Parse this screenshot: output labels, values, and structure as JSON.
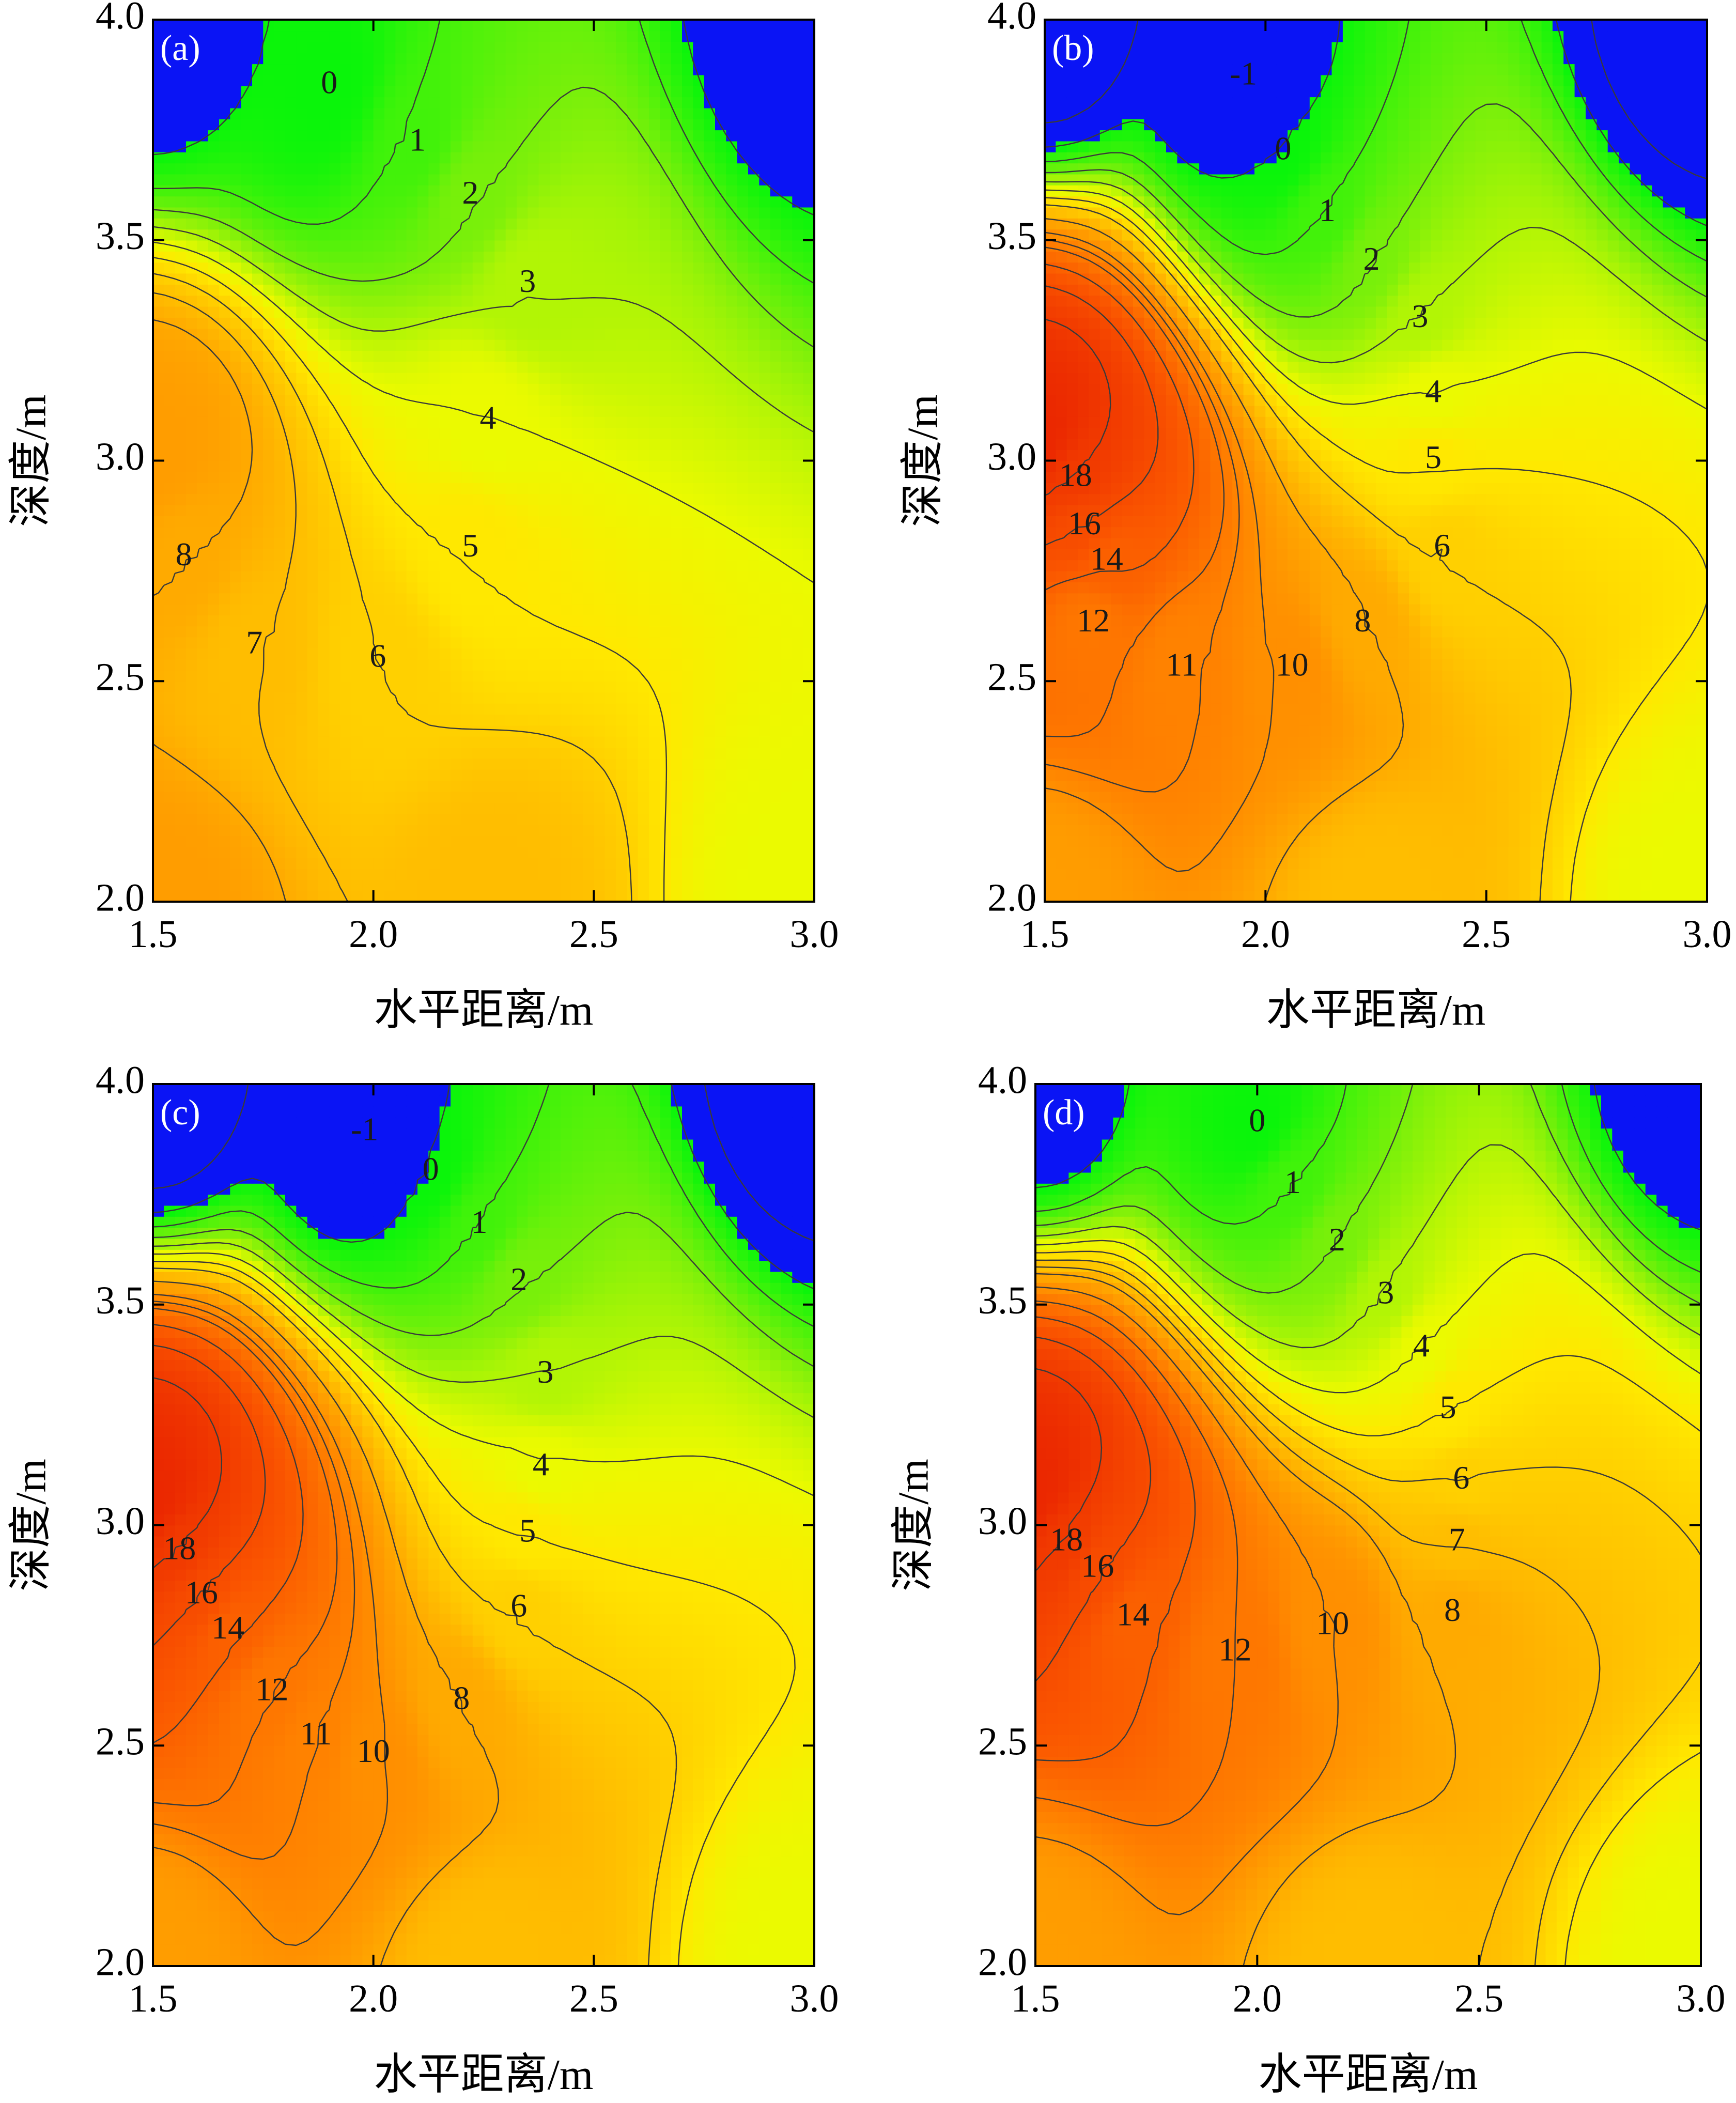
{
  "chart_data": [
    {
      "type": "contour",
      "panel_label": "(a)",
      "xlabel": "水平距离/m",
      "ylabel": "深度/m",
      "xlim": [
        1.5,
        3.0
      ],
      "ylim": [
        2.0,
        4.0
      ],
      "x_ticks": [
        "1.5",
        "2.0",
        "2.5",
        "3.0"
      ],
      "y_ticks": [
        "2.0",
        "2.5",
        "3.0",
        "3.5",
        "4.0"
      ],
      "peak": {
        "x": 1.5,
        "y": 3.0,
        "value": 9
      },
      "levels": [
        0,
        1,
        2,
        3,
        4,
        5,
        6,
        7,
        8
      ],
      "contour_labels": [
        {
          "text": "0",
          "x": 1.9,
          "y": 3.85
        },
        {
          "text": "1",
          "x": 2.1,
          "y": 3.72
        },
        {
          "text": "2",
          "x": 2.22,
          "y": 3.6
        },
        {
          "text": "3",
          "x": 2.35,
          "y": 3.4
        },
        {
          "text": "4",
          "x": 2.26,
          "y": 3.09
        },
        {
          "text": "5",
          "x": 2.22,
          "y": 2.8
        },
        {
          "text": "6",
          "x": 2.01,
          "y": 2.55
        },
        {
          "text": "7",
          "x": 1.73,
          "y": 2.58
        },
        {
          "text": "8",
          "x": 1.57,
          "y": 2.78
        }
      ]
    },
    {
      "type": "contour",
      "panel_label": "(b)",
      "xlabel": "水平距离/m",
      "ylabel": "深度/m",
      "xlim": [
        1.5,
        3.0
      ],
      "ylim": [
        2.0,
        4.0
      ],
      "x_ticks": [
        "1.5",
        "2.0",
        "2.5",
        "3.0"
      ],
      "y_ticks": [
        "2.0",
        "2.5",
        "3.0",
        "3.5",
        "4.0"
      ],
      "peak": {
        "x": 1.5,
        "y": 3.05,
        "value": 20
      },
      "levels": [
        -1,
        0,
        1,
        2,
        3,
        4,
        5,
        6,
        8,
        10,
        11,
        12,
        14,
        16,
        18
      ],
      "contour_labels": [
        {
          "text": "-1",
          "x": 1.95,
          "y": 3.87
        },
        {
          "text": "0",
          "x": 2.04,
          "y": 3.7
        },
        {
          "text": "1",
          "x": 2.14,
          "y": 3.56
        },
        {
          "text": "2",
          "x": 2.24,
          "y": 3.45
        },
        {
          "text": "3",
          "x": 2.35,
          "y": 3.32
        },
        {
          "text": "4",
          "x": 2.38,
          "y": 3.15
        },
        {
          "text": "5",
          "x": 2.38,
          "y": 3.0
        },
        {
          "text": "6",
          "x": 2.4,
          "y": 2.8
        },
        {
          "text": "8",
          "x": 2.22,
          "y": 2.63
        },
        {
          "text": "10",
          "x": 2.06,
          "y": 2.53
        },
        {
          "text": "11",
          "x": 1.81,
          "y": 2.53
        },
        {
          "text": "12",
          "x": 1.61,
          "y": 2.63
        },
        {
          "text": "14",
          "x": 1.64,
          "y": 2.77
        },
        {
          "text": "16",
          "x": 1.59,
          "y": 2.85
        },
        {
          "text": "18",
          "x": 1.57,
          "y": 2.96
        }
      ]
    },
    {
      "type": "contour",
      "panel_label": "(c)",
      "xlabel": "水平距离/m",
      "ylabel": "深度/m",
      "xlim": [
        1.5,
        3.0
      ],
      "ylim": [
        2.0,
        4.0
      ],
      "x_ticks": [
        "1.5",
        "2.0",
        "2.5",
        "3.0"
      ],
      "y_ticks": [
        "2.0",
        "2.5",
        "3.0",
        "3.5",
        "4.0"
      ],
      "peak": {
        "x": 1.5,
        "y": 3.05,
        "value": 20
      },
      "levels": [
        -1,
        0,
        1,
        2,
        3,
        4,
        5,
        6,
        8,
        10,
        11,
        12,
        14,
        16,
        18
      ],
      "contour_labels": [
        {
          "text": "-1",
          "x": 1.98,
          "y": 3.89
        },
        {
          "text": "0",
          "x": 2.13,
          "y": 3.8
        },
        {
          "text": "1",
          "x": 2.24,
          "y": 3.68
        },
        {
          "text": "2",
          "x": 2.33,
          "y": 3.55
        },
        {
          "text": "3",
          "x": 2.39,
          "y": 3.34
        },
        {
          "text": "4",
          "x": 2.38,
          "y": 3.13
        },
        {
          "text": "5",
          "x": 2.35,
          "y": 2.98
        },
        {
          "text": "6",
          "x": 2.33,
          "y": 2.81
        },
        {
          "text": "8",
          "x": 2.2,
          "y": 2.6
        },
        {
          "text": "10",
          "x": 2.0,
          "y": 2.48
        },
        {
          "text": "11",
          "x": 1.87,
          "y": 2.52
        },
        {
          "text": "12",
          "x": 1.77,
          "y": 2.62
        },
        {
          "text": "14",
          "x": 1.67,
          "y": 2.76
        },
        {
          "text": "16",
          "x": 1.61,
          "y": 2.84
        },
        {
          "text": "18",
          "x": 1.56,
          "y": 2.94
        }
      ]
    },
    {
      "type": "contour",
      "panel_label": "(d)",
      "xlabel": "水平距离/m",
      "ylabel": "深度/m",
      "xlim": [
        1.5,
        3.0
      ],
      "ylim": [
        2.0,
        4.0
      ],
      "x_ticks": [
        "1.5",
        "2.0",
        "2.5",
        "3.0"
      ],
      "y_ticks": [
        "2.0",
        "2.5",
        "3.0",
        "3.5",
        "4.0"
      ],
      "peak": {
        "x": 1.5,
        "y": 3.07,
        "value": 20
      },
      "levels": [
        0,
        1,
        2,
        3,
        4,
        5,
        6,
        7,
        8,
        10,
        12,
        14,
        16,
        18
      ],
      "contour_labels": [
        {
          "text": "0",
          "x": 2.0,
          "y": 3.91
        },
        {
          "text": "1",
          "x": 2.08,
          "y": 3.77
        },
        {
          "text": "2",
          "x": 2.18,
          "y": 3.64
        },
        {
          "text": "3",
          "x": 2.29,
          "y": 3.52
        },
        {
          "text": "4",
          "x": 2.37,
          "y": 3.4
        },
        {
          "text": "5",
          "x": 2.43,
          "y": 3.26
        },
        {
          "text": "6",
          "x": 2.46,
          "y": 3.1
        },
        {
          "text": "7",
          "x": 2.45,
          "y": 2.96
        },
        {
          "text": "8",
          "x": 2.44,
          "y": 2.8
        },
        {
          "text": "10",
          "x": 2.17,
          "y": 2.77
        },
        {
          "text": "12",
          "x": 1.95,
          "y": 2.71
        },
        {
          "text": "14",
          "x": 1.72,
          "y": 2.79
        },
        {
          "text": "16",
          "x": 1.64,
          "y": 2.9
        },
        {
          "text": "18",
          "x": 1.57,
          "y": 2.96
        }
      ]
    }
  ]
}
